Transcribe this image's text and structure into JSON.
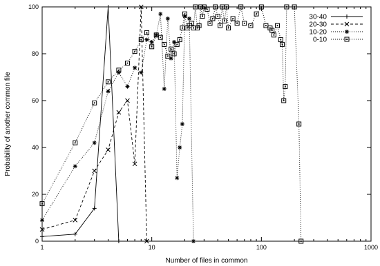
{
  "chart_data": {
    "type": "line",
    "xlabel": "Number of files in common",
    "ylabel": "Probability of another common file",
    "xscale": "log",
    "xlim": [
      1,
      1000
    ],
    "ylim": [
      0,
      100
    ],
    "x_ticks": [
      1,
      10,
      100,
      1000
    ],
    "x_tick_labels": [
      "1",
      "10",
      "100",
      "1000"
    ],
    "y_ticks": [
      0,
      20,
      40,
      60,
      80,
      100
    ],
    "y_tick_labels": [
      "0",
      "20",
      "40",
      "60",
      "80",
      "100"
    ],
    "grid": false,
    "legend_position": "top-right",
    "series": [
      {
        "name": "30-40",
        "marker": "plus",
        "dash": "solid",
        "x": [
          1,
          2,
          3,
          4,
          5
        ],
        "y": [
          2,
          3,
          14,
          100,
          0
        ]
      },
      {
        "name": "20-30",
        "marker": "cross",
        "dash": "dashed",
        "x": [
          1,
          2,
          3,
          4,
          5,
          6,
          7,
          8,
          9
        ],
        "y": [
          5,
          9,
          30,
          39,
          55,
          60,
          33,
          100,
          0
        ]
      },
      {
        "name": "10-20",
        "marker": "star",
        "dash": "dotted",
        "x": [
          1,
          2,
          3,
          4,
          5,
          6,
          7,
          8,
          9,
          10,
          11,
          12,
          13,
          14,
          15,
          16,
          17,
          18,
          19,
          20,
          22,
          24
        ],
        "y": [
          9,
          32,
          42,
          64,
          72,
          66,
          74,
          72,
          86,
          85,
          88,
          97,
          65,
          95,
          78,
          85,
          27,
          40,
          50,
          96,
          95,
          0
        ]
      },
      {
        "name": "0-10",
        "marker": "box",
        "dash": "dotted",
        "x": [
          1,
          2,
          3,
          4,
          5,
          6,
          7,
          8,
          9,
          10,
          11,
          12,
          13,
          14,
          15,
          16,
          17,
          18,
          19,
          20,
          21,
          22,
          23,
          24,
          25,
          26,
          27,
          28,
          29,
          30,
          32,
          34,
          36,
          38,
          40,
          42,
          44,
          46,
          48,
          50,
          55,
          60,
          65,
          70,
          80,
          90,
          100,
          110,
          120,
          125,
          130,
          140,
          150,
          155,
          160,
          165,
          170,
          200,
          220,
          230
        ],
        "y": [
          16,
          42,
          59,
          68,
          73,
          76,
          81,
          86,
          89,
          83,
          88,
          87,
          84,
          79,
          82,
          80,
          84,
          86,
          91,
          97,
          91,
          92,
          93,
          91,
          100,
          91,
          92,
          100,
          96,
          100,
          99,
          93,
          95,
          100,
          96,
          92,
          100,
          94,
          100,
          91,
          95,
          93,
          100,
          93,
          92,
          97,
          100,
          92,
          91,
          90,
          88,
          92,
          86,
          84,
          60,
          66,
          100,
          100,
          50,
          0
        ]
      }
    ]
  }
}
